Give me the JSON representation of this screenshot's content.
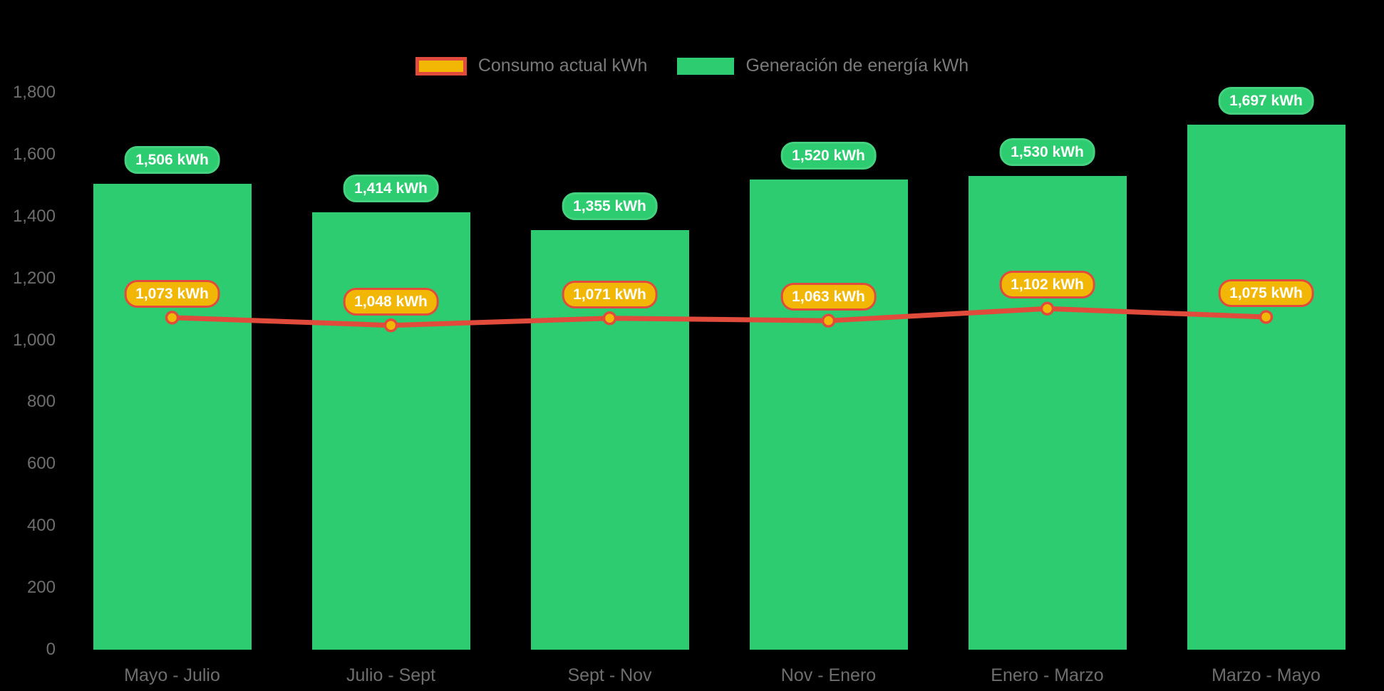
{
  "page": {
    "background": "#000000"
  },
  "legend": {
    "position": "top",
    "items": [
      {
        "label": "Consumo actual kWh",
        "swatch_fill": "#F2B705",
        "swatch_border": "#E04B3C",
        "series_type": "line"
      },
      {
        "label": "Generación de energía kWh",
        "swatch_fill": "#2ECC71",
        "series_type": "bar"
      }
    ]
  },
  "chart_data": {
    "type": "bar",
    "subtype": "bar-with-line-overlay",
    "title": "",
    "xlabel": "",
    "ylabel": "",
    "unit": "kWh",
    "grid": false,
    "legend_position": "top",
    "categories": [
      "Mayo - Julio",
      "Julio - Sept",
      "Sept - Nov",
      "Nov - Enero",
      "Enero - Marzo",
      "Marzo - Mayo"
    ],
    "series": [
      {
        "name": "Generación de energía kWh",
        "type": "bar",
        "color": "#2ECC71",
        "values": [
          1506,
          1414,
          1355,
          1520,
          1530,
          1697
        ],
        "labels": [
          "1,506 kWh",
          "1,414 kWh",
          "1,355 kWh",
          "1,520 kWh",
          "1,530 kWh",
          "1,697 kWh"
        ]
      },
      {
        "name": "Consumo actual kWh",
        "type": "line",
        "color": "#E04B3C",
        "point_fill": "#F2B705",
        "point_border": "#E04B3C",
        "values": [
          1073,
          1048,
          1071,
          1063,
          1102,
          1075
        ],
        "labels": [
          "1,073 kWh",
          "1,048 kWh",
          "1,071 kWh",
          "1,063 kWh",
          "1,102 kWh",
          "1,075 kWh"
        ]
      }
    ],
    "ylim": [
      0,
      1800
    ],
    "y_ticks": [
      0,
      200,
      400,
      600,
      800,
      1000,
      1200,
      1400,
      1600,
      1800
    ],
    "y_tick_labels": [
      "0",
      "200",
      "400",
      "600",
      "800",
      "1,000",
      "1,200",
      "1,400",
      "1,600",
      "1,800"
    ]
  },
  "colors": {
    "bar_green": "#2ECC71",
    "line_red": "#E04B3C",
    "point_gold": "#F2B705",
    "axis_text": "#6e6e6e",
    "legend_text": "#7a7a7a",
    "pill_text": "#ffffff"
  }
}
